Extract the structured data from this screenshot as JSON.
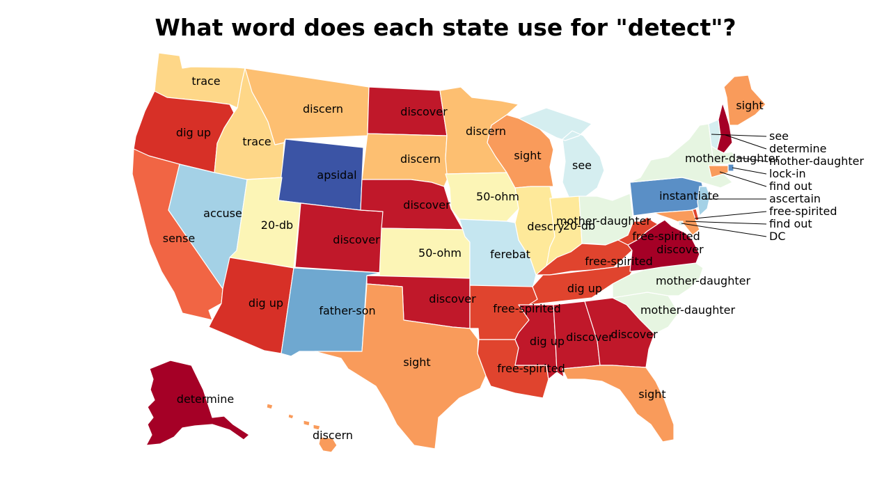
{
  "title": "What word does each state use for \"detect\"?",
  "colors": {
    "dark-red": "#a50026",
    "red": "#c0182a",
    "red-orange": "#d73027",
    "crimson-orange": "#e0442e",
    "orange-red": "#f16544",
    "orange": "#f99b5b",
    "light-orange": "#fdbf71",
    "tan": "#fed788",
    "light-yellow": "#fcf5b6",
    "pale-yellow": "#fee99a",
    "pale-green": "#e6f5e1",
    "pale-cyan": "#d5eef0",
    "light-blue-cyan": "#c5e6f0",
    "light-blue": "#a4d1e6",
    "steel-blue": "#6fa8d0",
    "medium-blue": "#5a8fc6",
    "dark-blue": "#3b54a5"
  },
  "states": [
    {
      "id": "WA",
      "word": "trace",
      "color": "tan"
    },
    {
      "id": "OR",
      "word": "dig up",
      "color": "red-orange"
    },
    {
      "id": "CA",
      "word": "sense",
      "color": "orange-red"
    },
    {
      "id": "ID",
      "word": "trace",
      "color": "tan"
    },
    {
      "id": "NV",
      "word": "accuse",
      "color": "light-blue"
    },
    {
      "id": "MT",
      "word": "discern",
      "color": "light-orange"
    },
    {
      "id": "WY",
      "word": "apsidal",
      "color": "dark-blue"
    },
    {
      "id": "UT",
      "word": "20-db",
      "color": "light-yellow"
    },
    {
      "id": "AZ",
      "word": "dig up",
      "color": "red-orange"
    },
    {
      "id": "CO",
      "word": "discover",
      "color": "red"
    },
    {
      "id": "NM",
      "word": "father-son",
      "color": "steel-blue"
    },
    {
      "id": "ND",
      "word": "discover",
      "color": "red"
    },
    {
      "id": "SD",
      "word": "discern",
      "color": "light-orange"
    },
    {
      "id": "NE",
      "word": "discover",
      "color": "red"
    },
    {
      "id": "KS",
      "word": "50-ohm",
      "color": "light-yellow"
    },
    {
      "id": "OK",
      "word": "discover",
      "color": "red"
    },
    {
      "id": "TX",
      "word": "sight",
      "color": "orange"
    },
    {
      "id": "MN",
      "word": "discern",
      "color": "light-orange"
    },
    {
      "id": "IA",
      "word": "50-ohm",
      "color": "light-yellow"
    },
    {
      "id": "MO",
      "word": "ferebat",
      "color": "light-blue-cyan"
    },
    {
      "id": "AR",
      "word": "free-spirited",
      "color": "crimson-orange"
    },
    {
      "id": "LA",
      "word": "free-spirited",
      "color": "crimson-orange"
    },
    {
      "id": "WI",
      "word": "sight",
      "color": "orange"
    },
    {
      "id": "IL",
      "word": "descry",
      "color": "pale-yellow"
    },
    {
      "id": "MI",
      "word": "see",
      "color": "pale-cyan"
    },
    {
      "id": "IN",
      "word": "20-db",
      "color": "pale-yellow"
    },
    {
      "id": "OH",
      "word": "mother-daughter",
      "color": "pale-green"
    },
    {
      "id": "KY",
      "word": "free-spirited",
      "color": "crimson-orange"
    },
    {
      "id": "TN",
      "word": "dig up",
      "color": "crimson-orange"
    },
    {
      "id": "MS",
      "word": "dig up",
      "color": "red"
    },
    {
      "id": "AL",
      "word": "discover",
      "color": "red"
    },
    {
      "id": "GA",
      "word": "discover",
      "color": "red"
    },
    {
      "id": "FL",
      "word": "sight",
      "color": "orange"
    },
    {
      "id": "SC",
      "word": "mother-daughter",
      "color": "pale-green"
    },
    {
      "id": "NC",
      "word": "mother-daughter",
      "color": "pale-green"
    },
    {
      "id": "VA",
      "word": "discover",
      "color": "dark-red"
    },
    {
      "id": "WV",
      "word": "free-spirited",
      "color": "crimson-orange"
    },
    {
      "id": "PA",
      "word": "instantiate",
      "color": "medium-blue"
    },
    {
      "id": "NY",
      "word": "mother-daughter",
      "color": "pale-green"
    },
    {
      "id": "ME",
      "word": "sight",
      "color": "orange"
    },
    {
      "id": "AK",
      "word": "determine",
      "color": "dark-red"
    },
    {
      "id": "HI",
      "word": "discern",
      "color": "orange"
    },
    {
      "id": "VT",
      "word": "see",
      "color": "pale-cyan"
    },
    {
      "id": "NH",
      "word": "determine",
      "color": "dark-red"
    },
    {
      "id": "MA",
      "word": "mother-daughter",
      "color": "pale-green"
    },
    {
      "id": "RI",
      "word": "lock-in",
      "color": "medium-blue"
    },
    {
      "id": "CT",
      "word": "find out",
      "color": "orange"
    },
    {
      "id": "NJ",
      "word": "ascertain",
      "color": "light-blue"
    },
    {
      "id": "DE",
      "word": "free-spirited",
      "color": "crimson-orange"
    },
    {
      "id": "MD",
      "word": "find out",
      "color": "orange"
    },
    {
      "id": "DC",
      "word": "DC",
      "color": "pale-cyan"
    }
  ]
}
